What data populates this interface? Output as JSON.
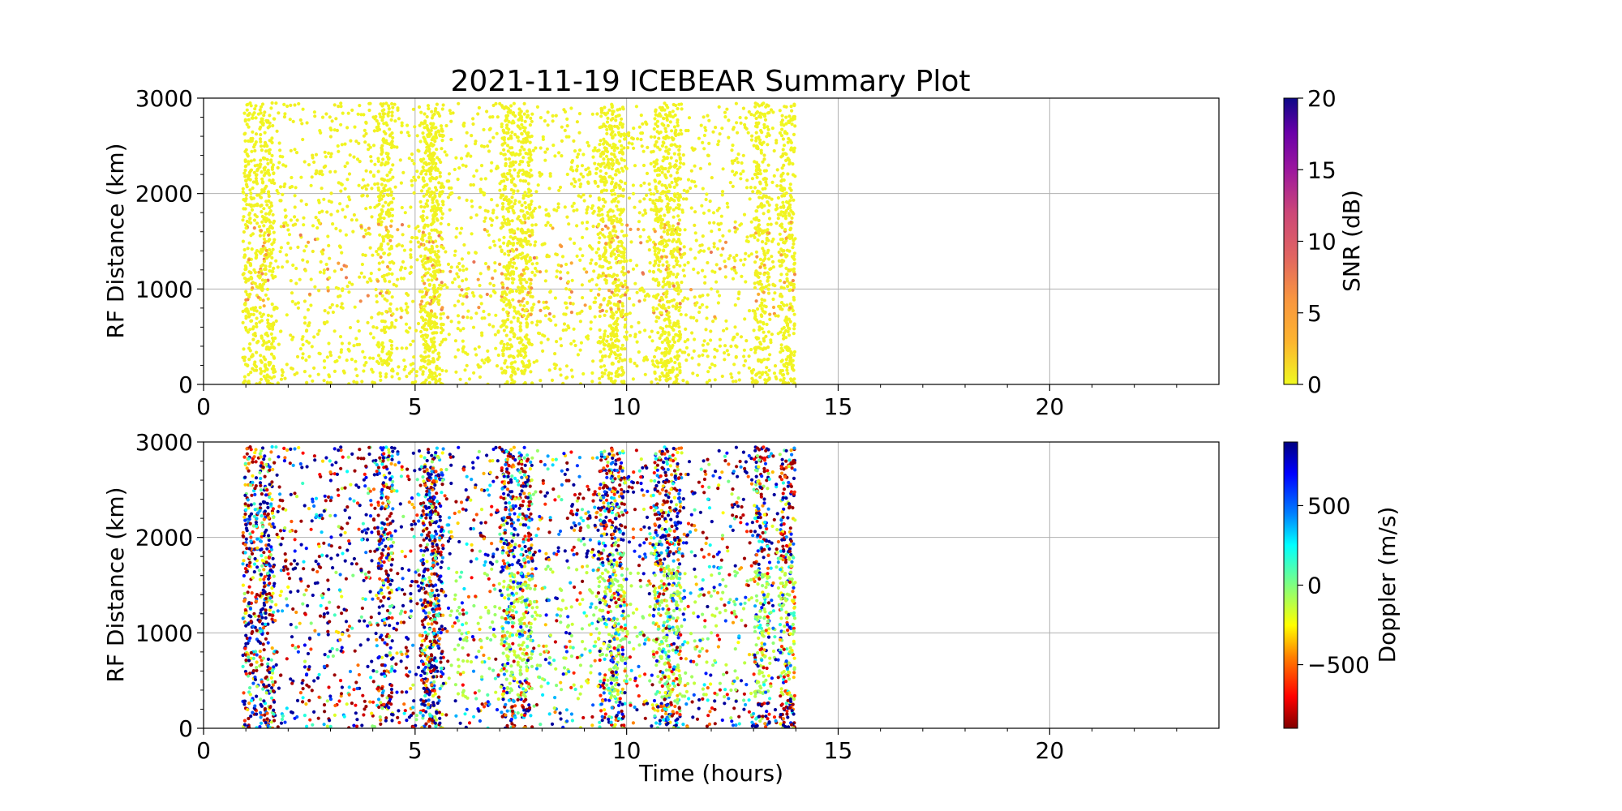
{
  "figure": {
    "title": "2021-11-19 ICEBEAR Summary Plot"
  },
  "chart_data": [
    {
      "type": "scatter",
      "panel": "snr",
      "title": "2021-11-19 ICEBEAR Summary Plot",
      "xlabel": "",
      "ylabel": "RF Distance (km)",
      "xlim": [
        0,
        24
      ],
      "ylim": [
        0,
        3000
      ],
      "xticks": [
        0,
        5,
        10,
        15,
        20
      ],
      "yticks": [
        0,
        1000,
        2000,
        3000
      ],
      "grid": true,
      "color_by": "SNR (dB)",
      "colorbar": {
        "label": "SNR (dB)",
        "range": [
          0,
          20
        ],
        "ticks": [
          0,
          5,
          10,
          15,
          20
        ],
        "colormap": "plasma_r"
      },
      "data_extent": {
        "time_hours": [
          1.0,
          14.0
        ],
        "rf_distance_km": [
          0,
          2950
        ]
      },
      "dense_time_bands_hours": [
        1.1,
        1.5,
        4.3,
        5.3,
        5.5,
        7.2,
        7.6,
        9.5,
        9.8,
        10.8,
        11.1,
        13.2,
        13.8
      ],
      "background_value": 0.5,
      "enhanced_range_km": [
        700,
        1700
      ],
      "enhanced_value": 5
    },
    {
      "type": "scatter",
      "panel": "doppler",
      "xlabel": "Time (hours)",
      "ylabel": "RF Distance (km)",
      "xlim": [
        0,
        24
      ],
      "ylim": [
        0,
        3000
      ],
      "xticks": [
        0,
        5,
        10,
        15,
        20
      ],
      "yticks": [
        0,
        1000,
        2000,
        3000
      ],
      "grid": true,
      "color_by": "Doppler (m/s)",
      "colorbar": {
        "label": "Doppler (m/s)",
        "range": [
          -900,
          900
        ],
        "ticks": [
          -500,
          0,
          500
        ],
        "tick_labels": [
          "−500",
          "0",
          "500"
        ],
        "colormap": "jet_r"
      },
      "data_extent": {
        "time_hours": [
          1.0,
          14.0
        ],
        "rf_distance_km": [
          0,
          2950
        ]
      },
      "dense_time_bands_hours": [
        1.1,
        1.5,
        4.3,
        5.3,
        5.5,
        7.2,
        7.6,
        9.5,
        9.8,
        10.8,
        11.1,
        13.2,
        13.8
      ],
      "low_doppler_cluster_km": [
        300,
        1700
      ],
      "low_doppler_value": -100
    }
  ]
}
